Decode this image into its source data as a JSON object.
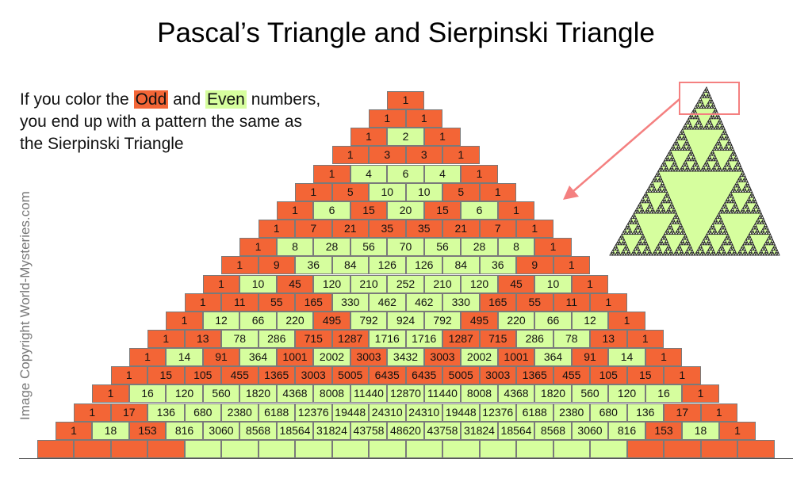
{
  "title": "Pascal’s Triangle and Sierpinski Triangle",
  "intro": {
    "line1_pre": "If you color the ",
    "odd": "Odd",
    "and": " and ",
    "even": "Even",
    "line1_post": " numbers,",
    "line2": "you end up with a pattern the same as",
    "line3": "the Sierpinski Triangle"
  },
  "copyright": "Image Copyright World-Mysteries.com",
  "colors": {
    "odd": "#f36536",
    "even": "#d6fe9e",
    "highlight_box": "#f48080"
  },
  "rows": [
    [
      1
    ],
    [
      1,
      1
    ],
    [
      1,
      2,
      1
    ],
    [
      1,
      3,
      3,
      1
    ],
    [
      1,
      4,
      6,
      4,
      1
    ],
    [
      1,
      5,
      10,
      10,
      5,
      1
    ],
    [
      1,
      6,
      15,
      20,
      15,
      6,
      1
    ],
    [
      1,
      7,
      21,
      35,
      35,
      21,
      7,
      1
    ],
    [
      1,
      8,
      28,
      56,
      70,
      56,
      28,
      8,
      1
    ],
    [
      1,
      9,
      36,
      84,
      126,
      126,
      84,
      36,
      9,
      1
    ],
    [
      1,
      10,
      45,
      120,
      210,
      252,
      210,
      120,
      45,
      10,
      1
    ],
    [
      1,
      11,
      55,
      165,
      330,
      462,
      462,
      330,
      165,
      55,
      11,
      1
    ],
    [
      1,
      12,
      66,
      220,
      495,
      792,
      924,
      792,
      495,
      220,
      66,
      12,
      1
    ],
    [
      1,
      13,
      78,
      286,
      715,
      1287,
      1716,
      1716,
      1287,
      715,
      286,
      78,
      13,
      1
    ],
    [
      1,
      14,
      91,
      364,
      1001,
      2002,
      3003,
      3432,
      3003,
      2002,
      1001,
      364,
      91,
      14,
      1
    ],
    [
      1,
      15,
      105,
      455,
      1365,
      3003,
      5005,
      6435,
      6435,
      5005,
      3003,
      1365,
      455,
      105,
      15,
      1
    ],
    [
      1,
      16,
      120,
      560,
      1820,
      4368,
      8008,
      11440,
      12870,
      11440,
      8008,
      4368,
      1820,
      560,
      120,
      16,
      1
    ],
    [
      1,
      17,
      136,
      680,
      2380,
      6188,
      12376,
      19448,
      24310,
      24310,
      19448,
      12376,
      6188,
      2380,
      680,
      136,
      17,
      1
    ],
    [
      1,
      18,
      153,
      816,
      3060,
      8568,
      18564,
      31824,
      43758,
      48620,
      43758,
      31824,
      18564,
      8568,
      3060,
      816,
      153,
      18,
      1
    ]
  ],
  "bottom_row_parity": [
    "odd",
    "odd",
    "odd",
    "odd",
    "even",
    "even",
    "even",
    "even",
    "even",
    "even",
    "even",
    "even",
    "even",
    "even",
    "even",
    "even",
    "odd",
    "odd",
    "odd",
    "odd"
  ]
}
